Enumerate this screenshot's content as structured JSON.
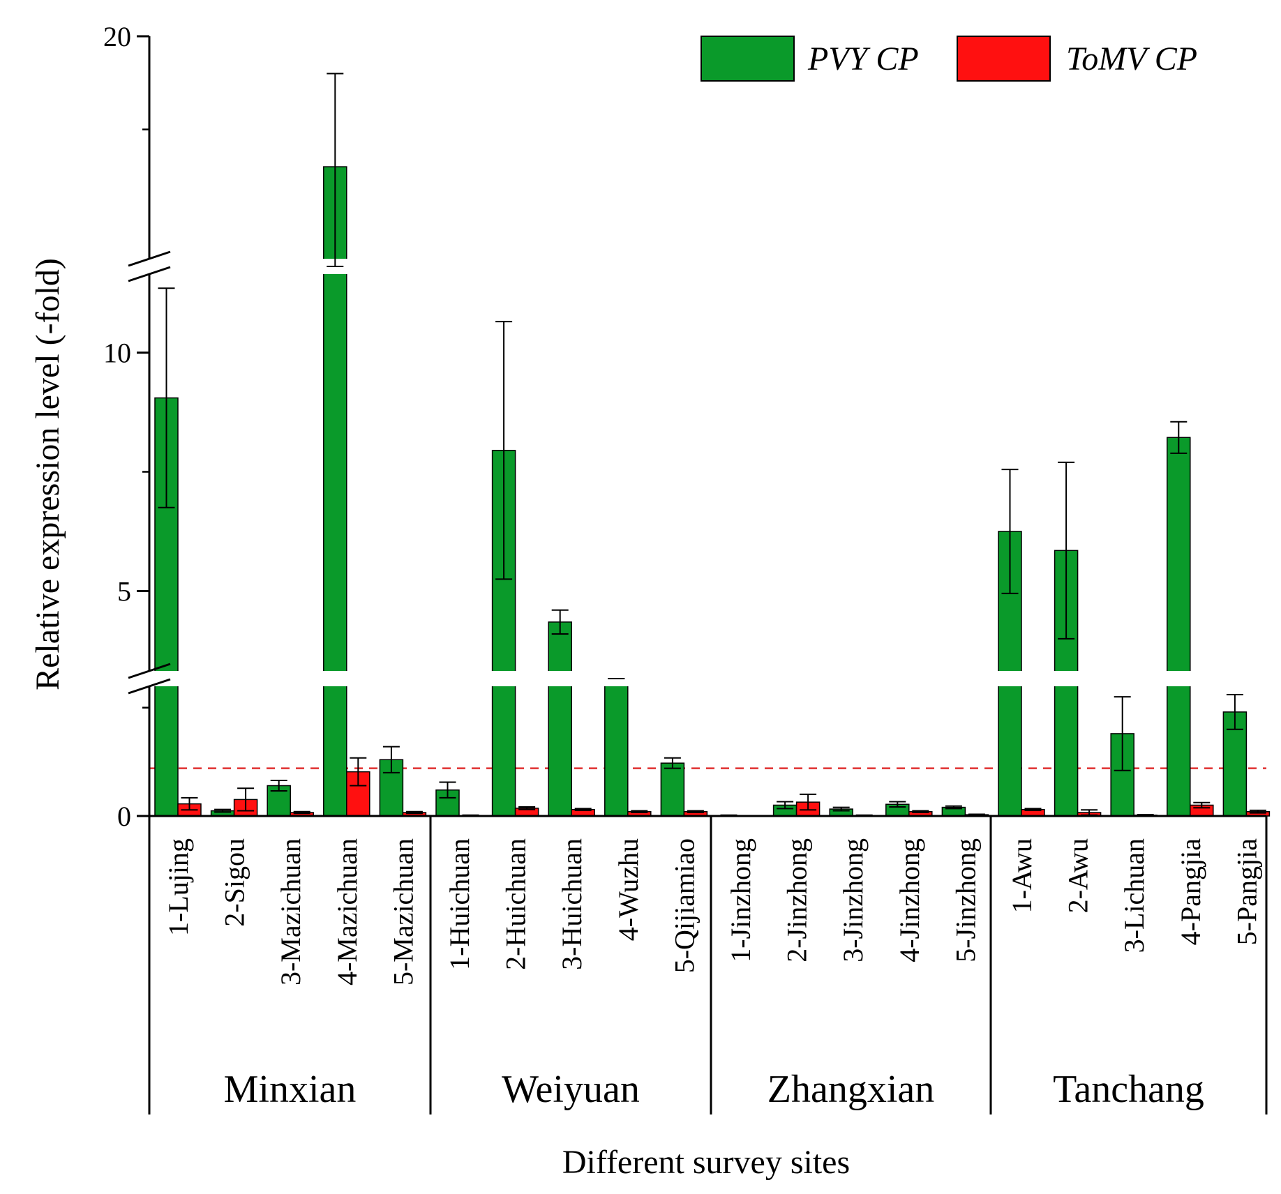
{
  "chart_data": {
    "type": "bar",
    "xlabel": "Different survey sites",
    "ylabel": "Relative expression level (-fold)",
    "y_ticks": [
      "0",
      "5",
      "10",
      "20"
    ],
    "y_segments": [
      [
        0,
        2.8
      ],
      [
        3.5,
        11.5
      ],
      [
        14.2,
        20
      ]
    ],
    "reference_line": 1.1,
    "groups": [
      {
        "name": "Minxian",
        "sites": [
          "1-Lujing",
          "2-Sigou",
          "3-Mazichuan",
          "4-Mazichuan",
          "5-Mazichuan"
        ]
      },
      {
        "name": "Weiyuan",
        "sites": [
          "1-Huichuan",
          "2-Huichuan",
          "3-Huichuan",
          "4-Wuzhu",
          "5-Qijiamiao"
        ]
      },
      {
        "name": "Zhangxian",
        "sites": [
          "1-Jinzhong",
          "2-Jinzhong",
          "3-Jinzhong",
          "4-Jinzhong",
          "5-Jinzhong"
        ]
      },
      {
        "name": "Tanchang",
        "sites": [
          "1-Awu",
          "2-Awu",
          "3-Lichuan",
          "4-Pangjia",
          "5-Pangjia"
        ]
      }
    ],
    "series": [
      {
        "name": "PVY CP",
        "color": "#0a9a2a",
        "values": [
          9.05,
          0.12,
          0.7,
          16.5,
          1.3,
          0.6,
          7.95,
          4.35,
          2.95,
          1.22,
          0.01,
          0.25,
          0.16,
          0.27,
          0.2,
          6.25,
          5.85,
          1.9,
          8.22,
          2.4
        ],
        "errors": [
          2.3,
          0.03,
          0.12,
          2.5,
          0.3,
          0.18,
          2.7,
          0.25,
          0.12,
          0.12,
          0.01,
          0.08,
          0.04,
          0.06,
          0.03,
          1.3,
          1.85,
          0.85,
          0.33,
          0.4
        ]
      },
      {
        "name": "ToMV CP",
        "color": "#ff1010",
        "values": [
          0.28,
          0.38,
          0.08,
          1.02,
          0.08,
          0.01,
          0.18,
          0.15,
          0.1,
          0.1,
          0.0,
          0.32,
          0.01,
          0.1,
          0.03,
          0.15,
          0.08,
          0.02,
          0.25,
          0.1
        ],
        "errors": [
          0.14,
          0.26,
          0.02,
          0.32,
          0.02,
          0.01,
          0.03,
          0.02,
          0.02,
          0.02,
          0.0,
          0.18,
          0.01,
          0.02,
          0.01,
          0.02,
          0.06,
          0.01,
          0.06,
          0.03
        ]
      }
    ]
  }
}
